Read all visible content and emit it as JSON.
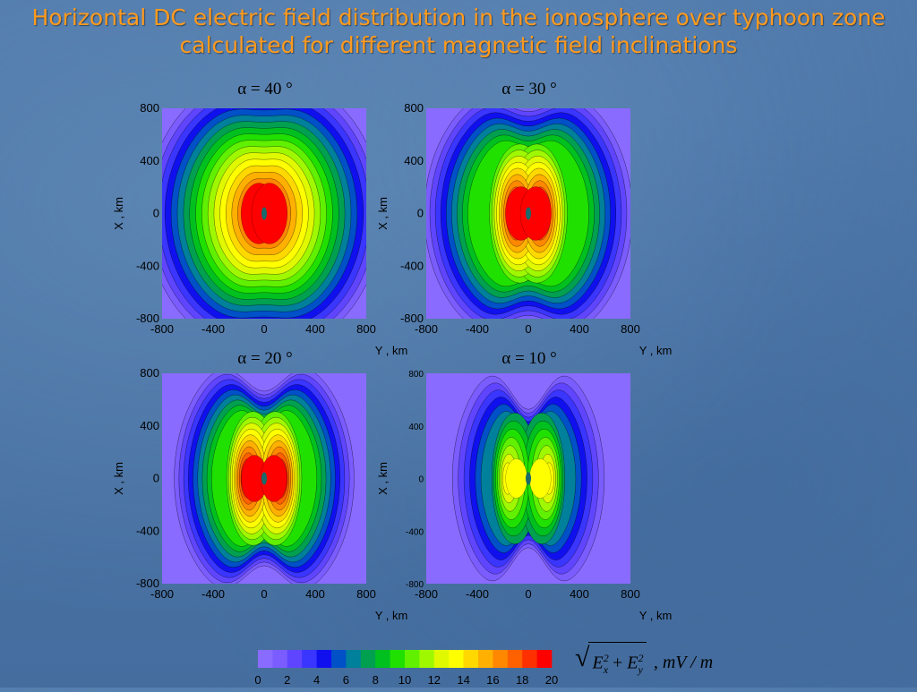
{
  "title": {
    "line1": "Horizontal DC electric field distribution in the ionosphere over typhoon zone",
    "line2": "calculated for different magnetic field inclinations"
  },
  "chart_data": [
    {
      "type": "heatmap",
      "label": "α = 40 °",
      "inclination_deg": 40,
      "xlabel": "Y , km",
      "ylabel": "X , km",
      "xlim": [
        -800,
        800
      ],
      "ylim": [
        -800,
        800
      ],
      "xticks": [
        -800,
        -400,
        0,
        400,
        800
      ],
      "yticks": [
        -800,
        -400,
        0,
        400,
        800
      ],
      "peak_value": 20
    },
    {
      "type": "heatmap",
      "label": "α = 30 °",
      "inclination_deg": 30,
      "xlabel": "Y , km",
      "ylabel": "X , km",
      "xlim": [
        -800,
        800
      ],
      "ylim": [
        -800,
        800
      ],
      "xticks": [
        -800,
        -400,
        0,
        400,
        800
      ],
      "yticks": [
        -800,
        -400,
        0,
        400,
        800
      ],
      "peak_value": 20
    },
    {
      "type": "heatmap",
      "label": "α = 20 °",
      "inclination_deg": 20,
      "xlabel": "Y , km",
      "ylabel": "X , km",
      "xlim": [
        -800,
        800
      ],
      "ylim": [
        -800,
        800
      ],
      "xticks": [
        -800,
        -400,
        0,
        400,
        800
      ],
      "yticks": [
        -800,
        -400,
        0,
        400,
        800
      ],
      "peak_value": 20
    },
    {
      "type": "heatmap",
      "label": "α = 10 °",
      "inclination_deg": 10,
      "xlabel": "Y , km",
      "ylabel": "X , km",
      "xlim": [
        -800,
        800
      ],
      "ylim": [
        -800,
        800
      ],
      "xticks": [
        -800,
        -400,
        0,
        400,
        800
      ],
      "yticks": [
        -800,
        -400,
        0,
        400,
        800
      ],
      "peak_value": 14
    }
  ],
  "colorbar": {
    "levels": [
      0,
      1,
      2,
      3,
      4,
      5,
      6,
      7,
      8,
      9,
      10,
      11,
      12,
      13,
      14,
      15,
      16,
      17,
      18,
      19,
      20
    ],
    "tick_labels": [
      "0",
      "2",
      "4",
      "6",
      "8",
      "10",
      "12",
      "14",
      "16",
      "18",
      "20"
    ],
    "colors": [
      "#8a6bff",
      "#7a5cff",
      "#5f45ff",
      "#3a35ff",
      "#1010ee",
      "#0050c8",
      "#00809a",
      "#00a050",
      "#00c020",
      "#20e000",
      "#60f000",
      "#a0f800",
      "#e0f800",
      "#ffff00",
      "#ffd800",
      "#ffb000",
      "#ff8800",
      "#ff6000",
      "#ff3000",
      "#ff0000"
    ]
  },
  "formula": {
    "term1": "E",
    "term1_sup": "2",
    "term1_sub": "x",
    "plus": "+",
    "term2": "E",
    "term2_sup": "2",
    "term2_sub": "y",
    "unit": ", mV / m"
  }
}
